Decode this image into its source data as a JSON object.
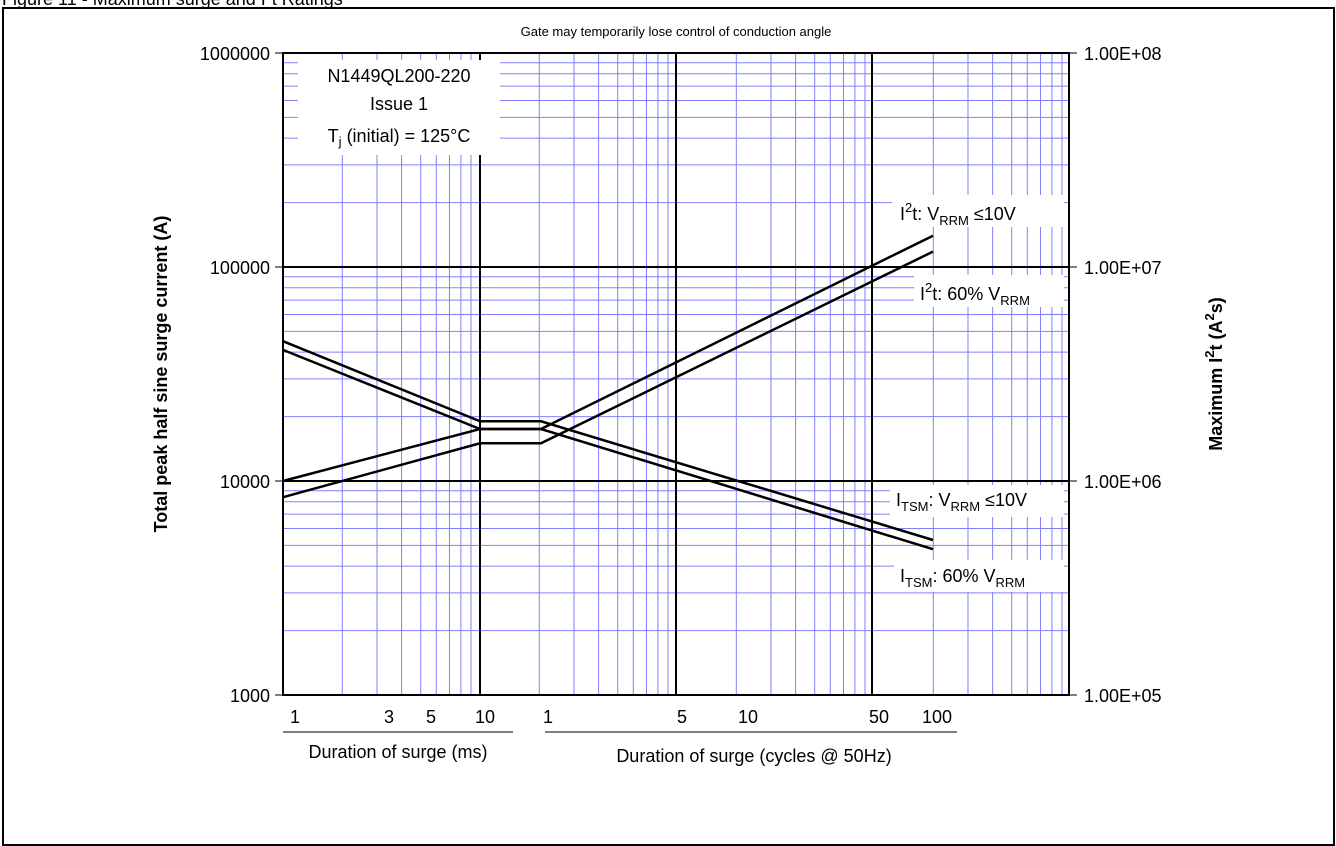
{
  "figure": {
    "caption": "Figure 11 - Maximum surge and I²t Ratings",
    "header_note": "Gate may temporarily lose control of conduction angle"
  },
  "info_box": {
    "line1": "N1449QL200-220",
    "line2": "Issue 1",
    "line3_main": "T",
    "line3_sub": "j",
    "line3_rest": " (initial) = 125°C"
  },
  "axes": {
    "y_left_label": "Total peak half sine surge current (A)",
    "y_right_label_pre": "Maximum I",
    "y_right_label_sup1": "2",
    "y_right_label_mid": "t (A",
    "y_right_label_sup2": "2",
    "y_right_label_post": "s)",
    "y_left_ticks": [
      "1000000",
      "100000",
      "10000",
      "1000"
    ],
    "y_right_ticks": [
      "1.00E+08",
      "1.00E+07",
      "1.00E+06",
      "1.00E+05"
    ],
    "x_ms_ticks": [
      "1",
      "3",
      "5",
      "10"
    ],
    "x_cycles_ticks": [
      "1",
      "5",
      "10",
      "50",
      "100"
    ],
    "x_ms_label": "Duration of surge (ms)",
    "x_cycles_label": "Duration of surge (cycles @ 50Hz)"
  },
  "legend_labels": {
    "i2t_10v": {
      "a": "I",
      "sup": "2",
      "b": "t: V",
      "sub": "RRM",
      "c": " ≤10V"
    },
    "i2t_60": {
      "a": "I",
      "sup": "2",
      "b": "t: 60% V",
      "sub": "RRM",
      "c": ""
    },
    "itsm_10v": {
      "a": "I",
      "sub1": "TSM",
      "b": ": V",
      "sub2": "RRM",
      "c": " ≤10V"
    },
    "itsm_60": {
      "a": "I",
      "sub1": "TSM",
      "b": ": 60% V",
      "sub2": "RRM",
      "c": ""
    }
  },
  "chart_data": {
    "type": "line",
    "title": "Gate may temporarily lose control of conduction angle",
    "x_scale": "log (two joined segments: ms then cycles @ 50Hz)",
    "y_left": {
      "label": "Total peak half sine surge current (A)",
      "scale": "log",
      "range": [
        1000,
        1000000
      ]
    },
    "y_right": {
      "label": "Maximum I²t (A²s)",
      "scale": "log",
      "range": [
        100000,
        100000000
      ]
    },
    "grid": true,
    "colors": {
      "grid": "#8080ff",
      "lines": "#000000"
    },
    "series": [
      {
        "name": "I²t: VRRM ≤10V",
        "axis": "right",
        "points": [
          {
            "segment": "ms",
            "x": 1,
            "y": 1000000
          },
          {
            "segment": "ms",
            "x": 10,
            "y": 1750000
          },
          {
            "segment": "cycles",
            "x": 1,
            "y": 1750000
          },
          {
            "segment": "cycles",
            "x": 100,
            "y": 14000000
          }
        ]
      },
      {
        "name": "I²t: 60% VRRM",
        "axis": "right",
        "points": [
          {
            "segment": "ms",
            "x": 1,
            "y": 840000
          },
          {
            "segment": "ms",
            "x": 10,
            "y": 1500000
          },
          {
            "segment": "cycles",
            "x": 1,
            "y": 1500000
          },
          {
            "segment": "cycles",
            "x": 100,
            "y": 11800000
          }
        ]
      },
      {
        "name": "ITSM: VRRM ≤10V",
        "axis": "left",
        "points": [
          {
            "segment": "ms",
            "x": 1,
            "y": 45000
          },
          {
            "segment": "ms",
            "x": 10,
            "y": 19000
          },
          {
            "segment": "cycles",
            "x": 1,
            "y": 19000
          },
          {
            "segment": "cycles",
            "x": 100,
            "y": 5300
          }
        ]
      },
      {
        "name": "ITSM: 60% VRRM",
        "axis": "left",
        "points": [
          {
            "segment": "ms",
            "x": 1,
            "y": 41000
          },
          {
            "segment": "ms",
            "x": 10,
            "y": 17500
          },
          {
            "segment": "cycles",
            "x": 1,
            "y": 17500
          },
          {
            "segment": "cycles",
            "x": 100,
            "y": 4800
          }
        ]
      }
    ]
  }
}
